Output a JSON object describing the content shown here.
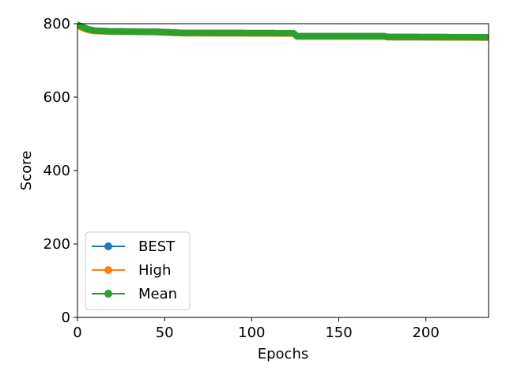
{
  "chart_data": {
    "type": "line",
    "title": "",
    "xlabel": "Epochs",
    "ylabel": "Score",
    "xlim": [
      0,
      236
    ],
    "ylim": [
      0,
      800
    ],
    "xticks": [
      0,
      50,
      100,
      150,
      200
    ],
    "yticks": [
      0,
      200,
      400,
      600,
      800
    ],
    "grid": false,
    "legend_position": "lower-left",
    "series": [
      {
        "name": "BEST",
        "color": "#1f77b4",
        "marker": "circle",
        "points": [
          [
            0,
            797
          ],
          [
            2,
            792
          ],
          [
            4,
            788
          ],
          [
            6,
            785
          ],
          [
            8,
            782
          ],
          [
            10,
            781
          ],
          [
            15,
            780
          ],
          [
            20,
            779
          ],
          [
            45,
            778
          ],
          [
            60,
            775
          ],
          [
            124,
            774
          ],
          [
            126,
            766
          ],
          [
            176,
            766
          ],
          [
            178,
            764
          ],
          [
            236,
            763
          ]
        ]
      },
      {
        "name": "High",
        "color": "#ff7f0e",
        "marker": "circle",
        "points": [
          [
            0,
            797
          ],
          [
            2,
            790
          ],
          [
            4,
            786
          ],
          [
            6,
            783
          ],
          [
            8,
            781
          ],
          [
            10,
            780
          ],
          [
            15,
            779
          ],
          [
            20,
            778
          ],
          [
            45,
            777
          ],
          [
            60,
            774
          ],
          [
            124,
            773
          ],
          [
            126,
            765
          ],
          [
            176,
            765
          ],
          [
            178,
            763
          ],
          [
            236,
            762
          ]
        ]
      },
      {
        "name": "Mean",
        "color": "#2ca02c",
        "marker": "circle",
        "points": [
          [
            0,
            797
          ],
          [
            2,
            793
          ],
          [
            4,
            789
          ],
          [
            6,
            785
          ],
          [
            8,
            783
          ],
          [
            10,
            781
          ],
          [
            15,
            780
          ],
          [
            20,
            779
          ],
          [
            45,
            778
          ],
          [
            60,
            775
          ],
          [
            124,
            774
          ],
          [
            126,
            766
          ],
          [
            176,
            766
          ],
          [
            178,
            764
          ],
          [
            236,
            763
          ]
        ]
      }
    ]
  }
}
